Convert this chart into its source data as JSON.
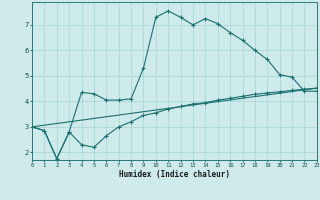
{
  "xlabel": "Humidex (Indice chaleur)",
  "bg_color": "#ceeaea",
  "grid_color": "#a8d4d4",
  "line_color": "#1a7070",
  "line1_x": [
    0,
    1,
    2,
    3,
    4,
    5,
    6,
    7,
    8,
    9,
    10,
    11,
    12,
    13,
    14,
    15,
    16,
    17,
    18,
    19,
    20,
    21,
    22,
    23
  ],
  "line1_y": [
    3.0,
    2.85,
    1.75,
    2.8,
    4.35,
    4.3,
    4.05,
    4.05,
    4.1,
    5.3,
    7.3,
    7.55,
    7.3,
    7.0,
    7.25,
    7.05,
    6.7,
    6.4,
    6.0,
    5.65,
    5.05,
    4.95,
    4.4,
    4.4
  ],
  "line2_x": [
    0,
    1,
    2,
    3,
    4,
    5,
    6,
    7,
    8,
    9,
    10,
    11,
    12,
    13,
    14,
    15,
    16,
    17,
    18,
    19,
    20,
    21,
    22,
    23
  ],
  "line2_y": [
    3.0,
    2.85,
    1.75,
    2.8,
    2.3,
    2.2,
    2.65,
    3.0,
    3.2,
    3.45,
    3.55,
    3.7,
    3.8,
    3.9,
    3.95,
    4.05,
    4.12,
    4.2,
    4.28,
    4.33,
    4.38,
    4.43,
    4.48,
    4.52
  ],
  "line3_x": [
    0,
    23
  ],
  "line3_y": [
    3.0,
    4.52
  ],
  "xlim": [
    0,
    23
  ],
  "ylim": [
    1.7,
    7.9
  ],
  "yticks": [
    2,
    3,
    4,
    5,
    6,
    7
  ],
  "xticks": [
    0,
    1,
    2,
    3,
    4,
    5,
    6,
    7,
    8,
    9,
    10,
    11,
    12,
    13,
    14,
    15,
    16,
    17,
    18,
    19,
    20,
    21,
    22,
    23
  ]
}
